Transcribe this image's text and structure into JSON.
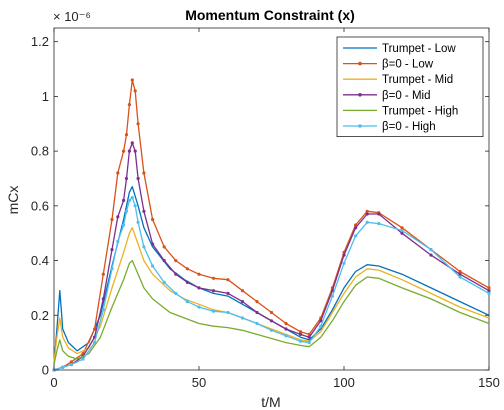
{
  "chart_data": {
    "type": "line",
    "title": "Momentum Constraint (x)",
    "xlabel": "t/M",
    "ylabel": "mCx",
    "y_exponent_label": "× 10⁻⁶",
    "xlim": [
      0,
      150
    ],
    "ylim": [
      0,
      1.25
    ],
    "xticks": [
      "0",
      "50",
      "100",
      "150"
    ],
    "yticks": [
      "0",
      "0.2",
      "0.4",
      "0.6",
      "0.8",
      "1",
      "1.2"
    ],
    "legend_position": "top-right",
    "grid": false,
    "series": [
      {
        "name": "Trumpet - Low",
        "color": "#0072BD",
        "marker": "none",
        "points": [
          [
            0,
            0.02
          ],
          [
            1,
            0.15
          ],
          [
            2,
            0.29
          ],
          [
            2.5,
            0.22
          ],
          [
            3,
            0.15
          ],
          [
            5,
            0.1
          ],
          [
            8,
            0.07
          ],
          [
            12,
            0.1
          ],
          [
            16,
            0.2
          ],
          [
            20,
            0.38
          ],
          [
            24,
            0.55
          ],
          [
            26,
            0.65
          ],
          [
            27,
            0.67
          ],
          [
            29,
            0.6
          ],
          [
            31,
            0.52
          ],
          [
            34,
            0.45
          ],
          [
            40,
            0.37
          ],
          [
            45,
            0.33
          ],
          [
            50,
            0.3
          ],
          [
            55,
            0.28
          ],
          [
            60,
            0.27
          ],
          [
            65,
            0.24
          ],
          [
            70,
            0.21
          ],
          [
            75,
            0.18
          ],
          [
            80,
            0.15
          ],
          [
            85,
            0.12
          ],
          [
            88,
            0.11
          ],
          [
            92,
            0.15
          ],
          [
            96,
            0.22
          ],
          [
            100,
            0.3
          ],
          [
            104,
            0.36
          ],
          [
            108,
            0.385
          ],
          [
            112,
            0.38
          ],
          [
            120,
            0.35
          ],
          [
            130,
            0.3
          ],
          [
            140,
            0.25
          ],
          [
            150,
            0.2
          ]
        ]
      },
      {
        "name": "β=0 - Low",
        "color": "#D95319",
        "marker": "dot",
        "points": [
          [
            0,
            0.0
          ],
          [
            3,
            0.01
          ],
          [
            6,
            0.03
          ],
          [
            10,
            0.06
          ],
          [
            14,
            0.15
          ],
          [
            17,
            0.35
          ],
          [
            20,
            0.55
          ],
          [
            22,
            0.72
          ],
          [
            24,
            0.8
          ],
          [
            25,
            0.86
          ],
          [
            26,
            0.97
          ],
          [
            27,
            1.06
          ],
          [
            28,
            1.02
          ],
          [
            29,
            0.9
          ],
          [
            31,
            0.72
          ],
          [
            34,
            0.55
          ],
          [
            38,
            0.45
          ],
          [
            42,
            0.4
          ],
          [
            46,
            0.37
          ],
          [
            50,
            0.35
          ],
          [
            55,
            0.335
          ],
          [
            60,
            0.33
          ],
          [
            65,
            0.29
          ],
          [
            70,
            0.25
          ],
          [
            75,
            0.21
          ],
          [
            80,
            0.17
          ],
          [
            85,
            0.14
          ],
          [
            88,
            0.13
          ],
          [
            92,
            0.19
          ],
          [
            96,
            0.3
          ],
          [
            100,
            0.43
          ],
          [
            104,
            0.53
          ],
          [
            108,
            0.58
          ],
          [
            112,
            0.575
          ],
          [
            120,
            0.52
          ],
          [
            130,
            0.44
          ],
          [
            140,
            0.36
          ],
          [
            150,
            0.3
          ]
        ]
      },
      {
        "name": "Trumpet - Mid",
        "color": "#EDB120",
        "marker": "none",
        "points": [
          [
            0,
            0.03
          ],
          [
            1,
            0.12
          ],
          [
            2,
            0.19
          ],
          [
            3,
            0.12
          ],
          [
            5,
            0.08
          ],
          [
            8,
            0.06
          ],
          [
            12,
            0.08
          ],
          [
            16,
            0.16
          ],
          [
            20,
            0.3
          ],
          [
            24,
            0.43
          ],
          [
            26,
            0.5
          ],
          [
            27,
            0.52
          ],
          [
            29,
            0.46
          ],
          [
            31,
            0.4
          ],
          [
            34,
            0.35
          ],
          [
            40,
            0.29
          ],
          [
            45,
            0.26
          ],
          [
            50,
            0.24
          ],
          [
            55,
            0.22
          ],
          [
            60,
            0.21
          ],
          [
            65,
            0.19
          ],
          [
            70,
            0.17
          ],
          [
            75,
            0.15
          ],
          [
            80,
            0.13
          ],
          [
            85,
            0.11
          ],
          [
            88,
            0.105
          ],
          [
            92,
            0.14
          ],
          [
            96,
            0.21
          ],
          [
            100,
            0.28
          ],
          [
            104,
            0.34
          ],
          [
            108,
            0.37
          ],
          [
            112,
            0.365
          ],
          [
            120,
            0.33
          ],
          [
            130,
            0.28
          ],
          [
            140,
            0.23
          ],
          [
            150,
            0.19
          ]
        ]
      },
      {
        "name": "β=0 - Mid",
        "color": "#7E2F8E",
        "marker": "dot",
        "points": [
          [
            0,
            0.0
          ],
          [
            3,
            0.01
          ],
          [
            6,
            0.02
          ],
          [
            10,
            0.05
          ],
          [
            14,
            0.12
          ],
          [
            17,
            0.26
          ],
          [
            20,
            0.44
          ],
          [
            22,
            0.56
          ],
          [
            24,
            0.62
          ],
          [
            25,
            0.7
          ],
          [
            26,
            0.8
          ],
          [
            27,
            0.83
          ],
          [
            28,
            0.8
          ],
          [
            29,
            0.7
          ],
          [
            31,
            0.58
          ],
          [
            34,
            0.46
          ],
          [
            38,
            0.4
          ],
          [
            42,
            0.35
          ],
          [
            46,
            0.32
          ],
          [
            50,
            0.3
          ],
          [
            55,
            0.29
          ],
          [
            60,
            0.28
          ],
          [
            65,
            0.25
          ],
          [
            70,
            0.21
          ],
          [
            75,
            0.18
          ],
          [
            80,
            0.15
          ],
          [
            85,
            0.13
          ],
          [
            88,
            0.12
          ],
          [
            92,
            0.18
          ],
          [
            96,
            0.29
          ],
          [
            100,
            0.42
          ],
          [
            104,
            0.52
          ],
          [
            108,
            0.57
          ],
          [
            112,
            0.57
          ],
          [
            120,
            0.5
          ],
          [
            130,
            0.42
          ],
          [
            140,
            0.35
          ],
          [
            150,
            0.29
          ]
        ]
      },
      {
        "name": "Trumpet - High",
        "color": "#77AC30",
        "marker": "none",
        "points": [
          [
            0,
            0.02
          ],
          [
            1,
            0.07
          ],
          [
            2,
            0.11
          ],
          [
            3,
            0.07
          ],
          [
            5,
            0.05
          ],
          [
            8,
            0.04
          ],
          [
            12,
            0.06
          ],
          [
            16,
            0.12
          ],
          [
            20,
            0.23
          ],
          [
            24,
            0.33
          ],
          [
            26,
            0.39
          ],
          [
            27,
            0.4
          ],
          [
            29,
            0.35
          ],
          [
            31,
            0.3
          ],
          [
            34,
            0.26
          ],
          [
            40,
            0.21
          ],
          [
            45,
            0.19
          ],
          [
            50,
            0.17
          ],
          [
            55,
            0.16
          ],
          [
            60,
            0.155
          ],
          [
            65,
            0.145
          ],
          [
            70,
            0.13
          ],
          [
            75,
            0.115
          ],
          [
            80,
            0.1
          ],
          [
            85,
            0.09
          ],
          [
            88,
            0.085
          ],
          [
            92,
            0.12
          ],
          [
            96,
            0.18
          ],
          [
            100,
            0.25
          ],
          [
            104,
            0.31
          ],
          [
            108,
            0.34
          ],
          [
            112,
            0.335
          ],
          [
            120,
            0.3
          ],
          [
            130,
            0.26
          ],
          [
            140,
            0.21
          ],
          [
            150,
            0.17
          ]
        ]
      },
      {
        "name": "β=0 - High",
        "color": "#4DBEEE",
        "marker": "dot",
        "points": [
          [
            0,
            0.0
          ],
          [
            3,
            0.01
          ],
          [
            6,
            0.02
          ],
          [
            10,
            0.04
          ],
          [
            14,
            0.1
          ],
          [
            17,
            0.22
          ],
          [
            20,
            0.37
          ],
          [
            22,
            0.47
          ],
          [
            24,
            0.53
          ],
          [
            25,
            0.58
          ],
          [
            26,
            0.62
          ],
          [
            27,
            0.63
          ],
          [
            28,
            0.6
          ],
          [
            29,
            0.54
          ],
          [
            31,
            0.45
          ],
          [
            34,
            0.38
          ],
          [
            38,
            0.32
          ],
          [
            42,
            0.28
          ],
          [
            46,
            0.25
          ],
          [
            50,
            0.23
          ],
          [
            55,
            0.215
          ],
          [
            60,
            0.21
          ],
          [
            65,
            0.19
          ],
          [
            70,
            0.17
          ],
          [
            75,
            0.145
          ],
          [
            80,
            0.125
          ],
          [
            85,
            0.105
          ],
          [
            88,
            0.1
          ],
          [
            92,
            0.16
          ],
          [
            96,
            0.27
          ],
          [
            100,
            0.39
          ],
          [
            104,
            0.49
          ],
          [
            108,
            0.54
          ],
          [
            112,
            0.535
          ],
          [
            120,
            0.51
          ],
          [
            130,
            0.44
          ],
          [
            140,
            0.34
          ],
          [
            150,
            0.28
          ]
        ]
      }
    ]
  }
}
